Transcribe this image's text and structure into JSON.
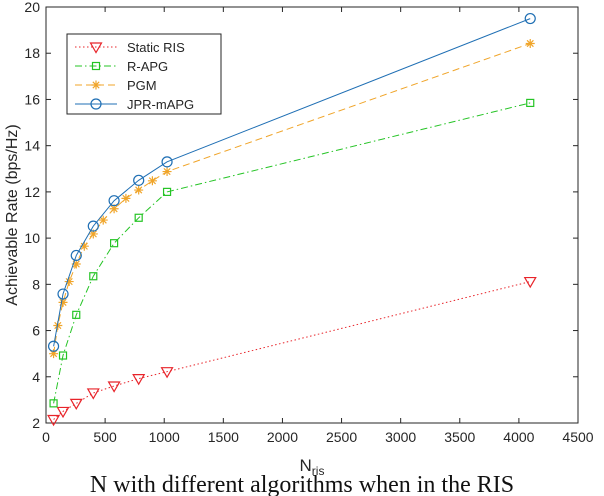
{
  "chart_data": {
    "type": "line",
    "title": "",
    "xlabel": "N",
    "xlabel_subscript": "ris",
    "ylabel": "Achievable Rate (bps/Hz)",
    "xlim": [
      0,
      4500
    ],
    "ylim": [
      2,
      20
    ],
    "xticks": [
      0,
      500,
      1000,
      1500,
      2000,
      2500,
      3000,
      3500,
      4000,
      4500
    ],
    "yticks": [
      2,
      4,
      6,
      8,
      10,
      12,
      14,
      16,
      18,
      20
    ],
    "grid": false,
    "legend_position": "top-left",
    "series": [
      {
        "name": "Static RIS",
        "color": "#e8242a",
        "line_style": "dotted",
        "marker": "triangle-down",
        "x": [
          64,
          144,
          256,
          400,
          576,
          784,
          1024,
          4096
        ],
        "y": [
          2.15,
          2.5,
          2.85,
          3.3,
          3.6,
          3.92,
          4.22,
          8.12
        ]
      },
      {
        "name": "R-APG",
        "color": "#25c425",
        "line_style": "dashdot",
        "marker": "square",
        "x": [
          64,
          144,
          256,
          400,
          576,
          784,
          1024,
          4096
        ],
        "y": [
          2.85,
          4.92,
          6.68,
          8.35,
          9.78,
          10.88,
          12.0,
          15.85
        ]
      },
      {
        "name": "PGM",
        "color": "#f0a52a",
        "line_style": "dashed",
        "marker": "asterisk",
        "x": [
          64,
          100,
          144,
          196,
          256,
          324,
          400,
          484,
          576,
          676,
          784,
          900,
          1024,
          4096
        ],
        "y": [
          5.0,
          6.22,
          7.22,
          8.12,
          8.88,
          9.65,
          10.18,
          10.78,
          11.27,
          11.72,
          12.08,
          12.48,
          12.88,
          18.42
        ]
      },
      {
        "name": "JPR-mAPG",
        "color": "#1f6fb4",
        "line_style": "solid",
        "marker": "circle",
        "x": [
          64,
          144,
          256,
          400,
          576,
          784,
          1024,
          4096
        ],
        "y": [
          5.32,
          7.58,
          9.25,
          10.52,
          11.62,
          12.5,
          13.3,
          19.5
        ]
      }
    ]
  },
  "caption": {
    "text": "N   with different algorithms when in the RIS"
  }
}
